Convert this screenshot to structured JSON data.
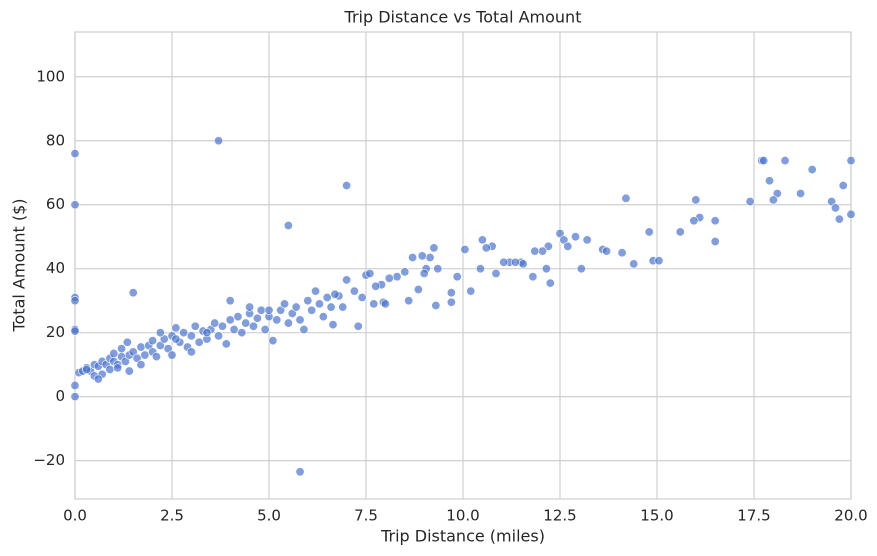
{
  "chart_data": {
    "type": "scatter",
    "title": "Trip Distance vs Total Amount",
    "x_label": "Trip Distance (miles)",
    "y_label": "Total Amount ($)",
    "color": "#4a74cf",
    "grid": true,
    "xlim": [
      0,
      20
    ],
    "ylim": [
      -32,
      114
    ],
    "xticks": [
      {
        "value": 0,
        "label": "0.0"
      },
      2.5,
      {
        "value": 5,
        "label": "5.0"
      },
      7.5,
      {
        "value": 10,
        "label": "10.0"
      },
      12.5,
      {
        "value": 15,
        "label": "15.0"
      },
      17.5,
      {
        "value": 20,
        "label": "20.0"
      }
    ],
    "yticks": [
      {
        "value": -20,
        "label": "−20"
      },
      0,
      20,
      40,
      60,
      80,
      100
    ],
    "x": [
      0,
      0,
      0,
      0,
      0,
      0,
      0,
      0,
      3.7,
      7.0,
      5.5,
      5.8,
      1.5,
      14.2,
      16,
      17.7,
      17.75,
      18.3,
      19,
      20,
      17.9,
      18.1,
      18.0,
      18.7,
      17.4,
      19.8,
      19.5,
      19.6,
      19.7,
      20,
      16.1,
      15.95,
      16.5,
      16.5,
      15.6,
      14.8,
      14.9,
      15.05,
      14.4,
      14.1,
      13.6,
      13.7,
      13.05,
      13.2,
      12.9,
      12.5,
      12.6,
      12.7,
      12.2,
      12.05,
      11.85,
      11.8,
      12.15,
      12.25,
      11.5,
      11.55,
      11.2,
      11.05,
      11.35,
      10.75,
      10.6,
      10.5,
      10.85,
      10.45,
      10.2,
      10.05,
      9.85,
      9.7,
      9.7,
      9.35,
      9.25,
      9.15,
      9.3,
      9.05,
      9.0,
      8.95,
      8.85,
      8.7,
      8.6,
      8.5,
      8.3,
      8.1,
      7.95,
      7.9,
      7.75,
      7.3,
      7.5,
      7.4,
      7.2,
      7.0,
      6.9,
      6.65,
      6.8,
      0.1,
      0.2,
      0.3,
      0.4,
      0.5,
      0.5,
      0.6,
      0.7,
      0.7,
      0.8,
      0.9,
      0.9,
      1.0,
      1.0,
      1.1,
      1.2,
      1.2,
      1.3,
      1.4,
      1.4,
      1.5,
      1.6,
      1.7,
      1.7,
      1.8,
      1.9,
      2.0,
      2.0,
      2.1,
      2.2,
      2.3,
      2.4,
      2.5,
      2.5,
      2.6,
      2.7,
      2.8,
      2.9,
      3.0,
      3.1,
      3.2,
      3.3,
      3.4,
      3.5,
      3.6,
      3.7,
      3.8,
      3.9,
      4.0,
      4.0,
      4.1,
      4.2,
      4.3,
      4.4,
      4.5,
      4.6,
      4.7,
      4.8,
      4.9,
      5.0,
      5.1,
      5.2,
      5.3,
      5.4,
      5.5,
      5.6,
      5.7,
      5.8,
      5.9,
      6.0,
      6.1,
      6.2,
      6.3,
      6.4,
      6.5,
      6.6,
      6.7,
      7.6,
      7.7,
      8.0,
      1.35,
      2.2,
      0.6,
      3.0,
      0.3,
      1.1,
      2.6,
      3.4,
      4.5,
      5.0
    ],
    "values": [
      76,
      60,
      31,
      30,
      21,
      20.5,
      3.5,
      0,
      80,
      66,
      53.5,
      -23.5,
      32.5,
      62,
      61.5,
      73.8,
      73.8,
      73.8,
      71,
      73.8,
      67.5,
      63.5,
      61.5,
      63.5,
      61,
      66,
      61,
      59,
      55.5,
      57,
      56,
      55,
      55,
      48.5,
      51.5,
      51.5,
      42.5,
      42.5,
      41.5,
      45,
      46,
      45.5,
      40,
      49,
      50,
      51,
      49,
      47,
      47,
      45.5,
      45.5,
      37.5,
      40,
      35.5,
      42,
      41.5,
      42,
      42,
      42,
      47,
      46.5,
      49,
      38.5,
      40,
      33,
      46,
      37.5,
      32.5,
      29.5,
      40,
      46.5,
      43.5,
      28.5,
      40,
      38.5,
      44,
      33.5,
      43.5,
      30,
      39,
      37.5,
      37,
      29.5,
      35,
      34.5,
      22,
      38,
      31,
      33,
      36.5,
      28,
      22.5,
      31.5,
      7.5,
      8,
      9,
      8,
      10,
      6.5,
      9.5,
      11,
      7,
      10,
      12,
      8.5,
      11,
      13.5,
      10,
      12.5,
      15,
      11,
      13,
      8,
      14,
      12,
      15.5,
      10,
      13,
      16,
      14,
      17.5,
      12.5,
      16,
      18,
      15,
      19,
      13,
      21.5,
      17,
      20,
      15.5,
      19,
      22,
      17,
      20.5,
      18,
      21,
      23,
      19,
      22,
      16.5,
      24,
      30,
      21,
      25,
      20,
      23,
      26,
      22,
      24.5,
      27,
      21,
      25,
      17.5,
      24,
      27,
      29,
      23,
      26,
      28,
      24,
      21,
      30,
      27,
      33,
      29,
      25,
      31,
      28,
      32,
      38.5,
      29,
      29,
      17,
      20,
      5.5,
      14,
      8.5,
      9,
      18,
      20,
      28,
      27
    ]
  }
}
